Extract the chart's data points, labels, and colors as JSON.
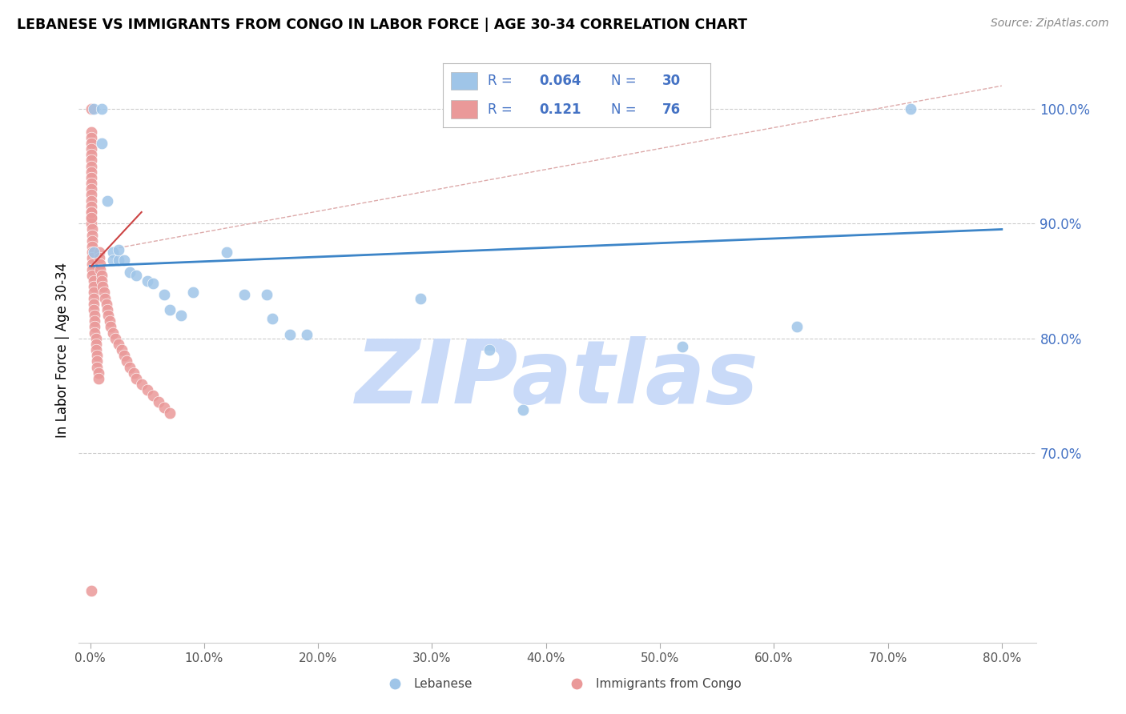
{
  "title": "LEBANESE VS IMMIGRANTS FROM CONGO IN LABOR FORCE | AGE 30-34 CORRELATION CHART",
  "source": "Source: ZipAtlas.com",
  "ylabel": "In Labor Force | Age 30-34",
  "x_tick_labels": [
    "0.0%",
    "10.0%",
    "20.0%",
    "30.0%",
    "40.0%",
    "50.0%",
    "60.0%",
    "70.0%",
    "80.0%"
  ],
  "x_tick_values": [
    0.0,
    0.1,
    0.2,
    0.3,
    0.4,
    0.5,
    0.6,
    0.7,
    0.8
  ],
  "y_tick_labels": [
    "100.0%",
    "90.0%",
    "80.0%",
    "70.0%"
  ],
  "y_tick_values": [
    1.0,
    0.9,
    0.8,
    0.7
  ],
  "xlim": [
    -0.01,
    0.83
  ],
  "ylim": [
    0.535,
    1.045
  ],
  "legend_label_color": "#4472c4",
  "legend_blue_label": "Lebanese",
  "legend_pink_label": "Immigrants from Congo",
  "blue_color": "#9fc5e8",
  "pink_color": "#ea9999",
  "blue_line_color": "#3d85c8",
  "pink_line_color": "#cc4444",
  "axis_color": "#4472c4",
  "watermark": "ZIPatlas",
  "watermark_color": "#c9daf8",
  "blue_scatter_x": [
    0.003,
    0.01,
    0.01,
    0.003,
    0.015,
    0.02,
    0.02,
    0.025,
    0.025,
    0.03,
    0.035,
    0.04,
    0.05,
    0.055,
    0.065,
    0.07,
    0.08,
    0.09,
    0.12,
    0.135,
    0.155,
    0.175,
    0.29,
    0.35,
    0.38,
    0.52,
    0.62,
    0.72,
    0.16,
    0.19
  ],
  "blue_scatter_y": [
    1.0,
    1.0,
    0.97,
    0.875,
    0.92,
    0.875,
    0.868,
    0.868,
    0.877,
    0.868,
    0.858,
    0.855,
    0.85,
    0.848,
    0.838,
    0.825,
    0.82,
    0.84,
    0.875,
    0.838,
    0.838,
    0.803,
    0.835,
    0.79,
    0.738,
    0.793,
    0.81,
    1.0,
    0.817,
    0.803
  ],
  "pink_scatter_x": [
    0.001,
    0.001,
    0.001,
    0.001,
    0.001,
    0.001,
    0.001,
    0.001,
    0.001,
    0.001,
    0.001,
    0.001,
    0.001,
    0.001,
    0.001,
    0.001,
    0.001,
    0.001,
    0.002,
    0.002,
    0.002,
    0.002,
    0.002,
    0.002,
    0.002,
    0.002,
    0.002,
    0.003,
    0.003,
    0.003,
    0.003,
    0.003,
    0.003,
    0.004,
    0.004,
    0.004,
    0.004,
    0.005,
    0.005,
    0.005,
    0.006,
    0.006,
    0.006,
    0.007,
    0.007,
    0.008,
    0.008,
    0.009,
    0.009,
    0.01,
    0.01,
    0.011,
    0.012,
    0.013,
    0.014,
    0.015,
    0.016,
    0.017,
    0.018,
    0.02,
    0.022,
    0.025,
    0.028,
    0.03,
    0.032,
    0.035,
    0.038,
    0.04,
    0.045,
    0.05,
    0.055,
    0.06,
    0.065,
    0.07,
    0.001,
    0.001,
    0.001
  ],
  "pink_scatter_y": [
    1.0,
    0.98,
    0.975,
    0.97,
    0.965,
    0.96,
    0.955,
    0.95,
    0.945,
    0.94,
    0.935,
    0.93,
    0.925,
    0.92,
    0.915,
    0.91,
    0.905,
    0.9,
    0.895,
    0.89,
    0.885,
    0.88,
    0.875,
    0.87,
    0.865,
    0.86,
    0.855,
    0.85,
    0.845,
    0.84,
    0.835,
    0.83,
    0.825,
    0.82,
    0.815,
    0.81,
    0.805,
    0.8,
    0.795,
    0.79,
    0.785,
    0.78,
    0.775,
    0.77,
    0.765,
    0.875,
    0.87,
    0.865,
    0.86,
    0.855,
    0.85,
    0.845,
    0.84,
    0.835,
    0.83,
    0.825,
    0.82,
    0.815,
    0.81,
    0.805,
    0.8,
    0.795,
    0.79,
    0.785,
    0.78,
    0.775,
    0.77,
    0.765,
    0.76,
    0.755,
    0.75,
    0.745,
    0.74,
    0.735,
    0.58,
    0.91,
    0.905
  ],
  "blue_line_x": [
    0.0,
    0.8
  ],
  "blue_line_y": [
    0.863,
    0.895
  ],
  "pink_line_x": [
    0.001,
    0.045
  ],
  "pink_line_y": [
    0.863,
    0.91
  ],
  "diag_line_x": [
    0.02,
    0.8
  ],
  "diag_line_y": [
    0.878,
    1.02
  ]
}
